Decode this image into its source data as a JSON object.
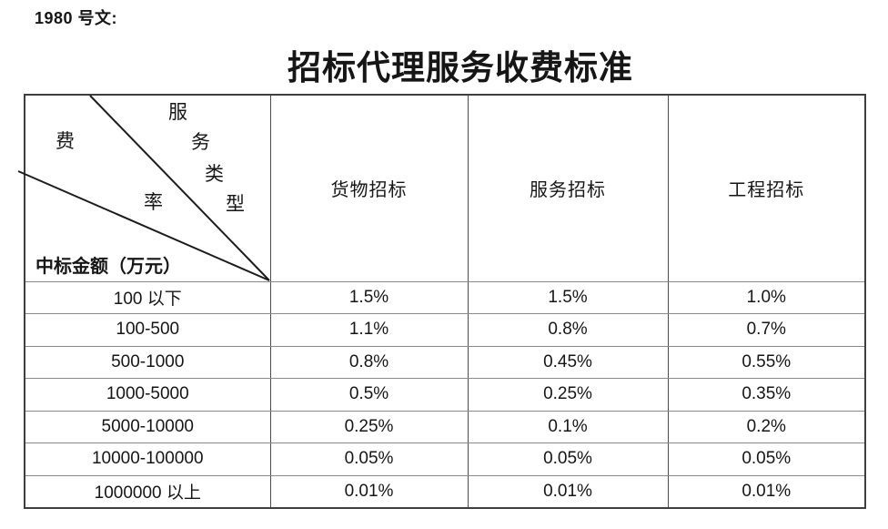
{
  "doc_label": "1980 号文:",
  "title": "招标代理服务收费标准",
  "table": {
    "corner": {
      "service_type_label": "服务类型",
      "fee_rate_label": "费率",
      "amount_label": "中标金额（万元）"
    },
    "columns": [
      "货物招标",
      "服务招标",
      "工程招标"
    ],
    "rows": [
      {
        "amount": "100 以下",
        "values": [
          "1.5%",
          "1.5%",
          "1.0%"
        ]
      },
      {
        "amount": "100-500",
        "values": [
          "1.1%",
          "0.8%",
          "0.7%"
        ]
      },
      {
        "amount": "500-1000",
        "values": [
          "0.8%",
          "0.45%",
          "0.55%"
        ]
      },
      {
        "amount": "1000-5000",
        "values": [
          "0.5%",
          "0.25%",
          "0.35%"
        ]
      },
      {
        "amount": "5000-10000",
        "values": [
          "0.25%",
          "0.1%",
          "0.2%"
        ]
      },
      {
        "amount": "10000-100000",
        "values": [
          "0.05%",
          "0.05%",
          "0.05%"
        ]
      },
      {
        "amount": "1000000 以上",
        "values": [
          "0.01%",
          "0.01%",
          "0.01%"
        ]
      }
    ],
    "colors": {
      "text": "#161616",
      "border_outer": "#3f3f3f",
      "border_vertical": "#4c4c4c",
      "border_horizontal": "#8a8a8a",
      "diagonal_line": "#1c1c1c"
    }
  }
}
